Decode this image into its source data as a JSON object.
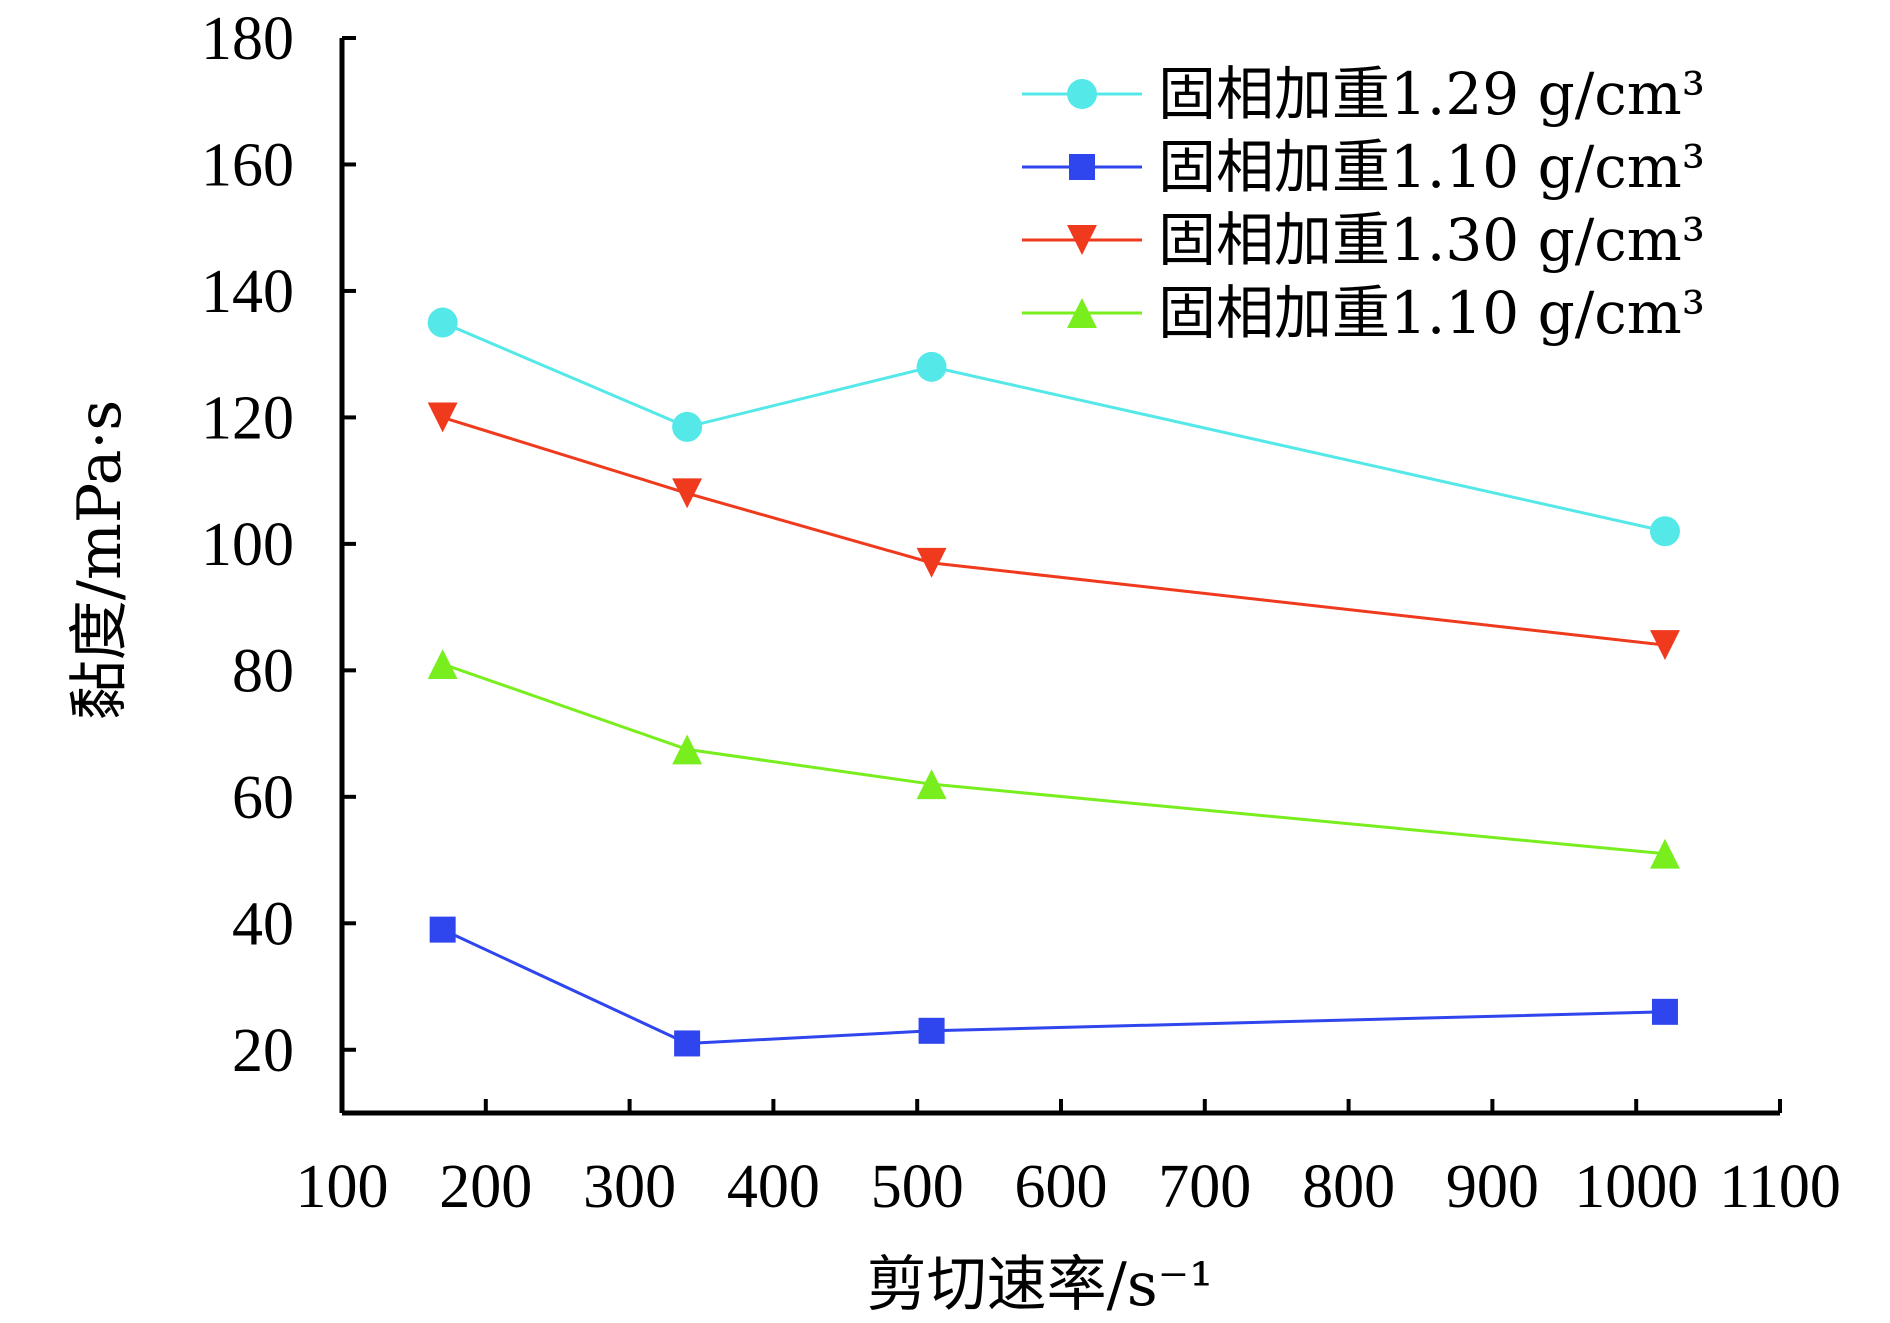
{
  "chart_data": {
    "type": "line",
    "xlabel": "剪切速率/s⁻¹",
    "ylabel": "黏度/mPa·s",
    "xlim": [
      100,
      1100
    ],
    "ylim": [
      10,
      180
    ],
    "xticks": [
      "100",
      "200",
      "300",
      "400",
      "500",
      "600",
      "700",
      "800",
      "900",
      "1000",
      "1100"
    ],
    "yticks": [
      "20",
      "40",
      "60",
      "80",
      "100",
      "120",
      "140",
      "160",
      "180"
    ],
    "x": [
      170,
      340,
      510,
      1020
    ],
    "legend_position": "top-right",
    "grid": false,
    "series": [
      {
        "name": "固相加重1.29 g/cm³",
        "values": [
          135,
          118.5,
          128,
          102
        ],
        "color": "#55e8e8",
        "marker": "circle"
      },
      {
        "name": "固相加重1.10 g/cm³",
        "values": [
          39,
          21,
          23,
          26
        ],
        "color": "#2f45ee",
        "marker": "square"
      },
      {
        "name": "固相加重1.30 g/cm³",
        "values": [
          120,
          108,
          97,
          84
        ],
        "color": "#f03a1e",
        "marker": "triangle-down"
      },
      {
        "name": "固相加重1.10 g/cm³",
        "values": [
          81,
          67.5,
          62,
          51
        ],
        "color": "#78ee1e",
        "marker": "triangle-up"
      }
    ]
  }
}
